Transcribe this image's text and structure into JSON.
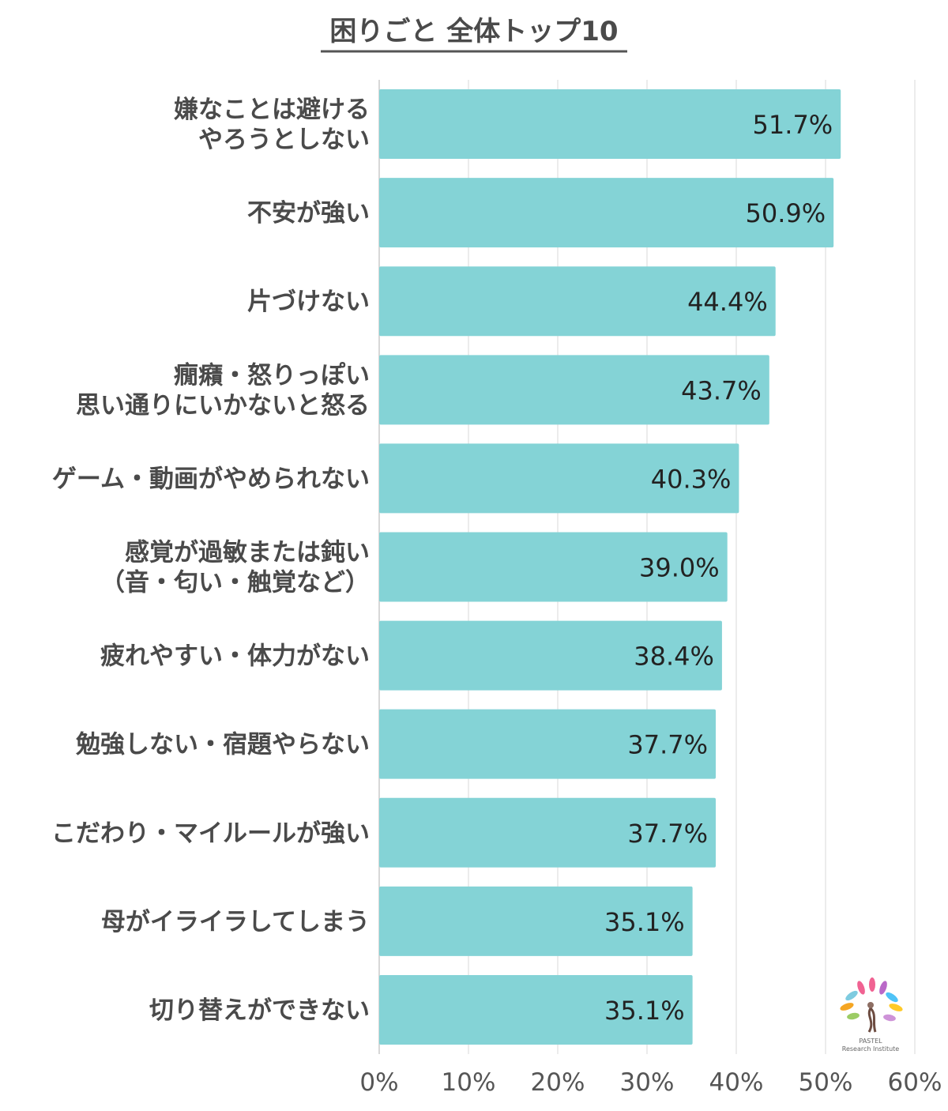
{
  "chart_data": {
    "type": "bar",
    "orientation": "horizontal",
    "title": "困りごと 全体トップ10",
    "categories": [
      [
        "嫌なことは避ける",
        "やろうとしない"
      ],
      [
        "不安が強い"
      ],
      [
        "片づけない"
      ],
      [
        "癇癪・怒りっぽい",
        "思い通りにいかないと怒る"
      ],
      [
        "ゲーム・動画がやめられない"
      ],
      [
        "感覚が過敏または鈍い",
        "（音・匂い・触覚など）"
      ],
      [
        "疲れやすい・体力がない"
      ],
      [
        "勉強しない・宿題やらない"
      ],
      [
        "こだわり・マイルールが強い"
      ],
      [
        "母がイライラしてしまう"
      ],
      [
        "切り替えができない"
      ]
    ],
    "values": [
      51.7,
      50.9,
      44.4,
      43.7,
      40.3,
      39.0,
      38.4,
      37.7,
      37.7,
      35.1,
      35.1
    ],
    "value_labels": [
      "51.7%",
      "50.9%",
      "44.4%",
      "43.7%",
      "40.3%",
      "39.0%",
      "38.4%",
      "37.7%",
      "37.7%",
      "35.1%",
      "35.1%"
    ],
    "xlim": [
      0,
      60
    ],
    "x_ticks": [
      0,
      10,
      20,
      30,
      40,
      50,
      60
    ],
    "x_tick_labels": [
      "0%",
      "10%",
      "20%",
      "30%",
      "40%",
      "50%",
      "60%"
    ],
    "grid": true,
    "legend": "none",
    "bar_color": "#84d3d6",
    "grid_color": "#e6e6e6"
  },
  "logo": {
    "name": "PASTEL",
    "subtitle": "Research Institute",
    "icon": "tree-logo-icon"
  }
}
